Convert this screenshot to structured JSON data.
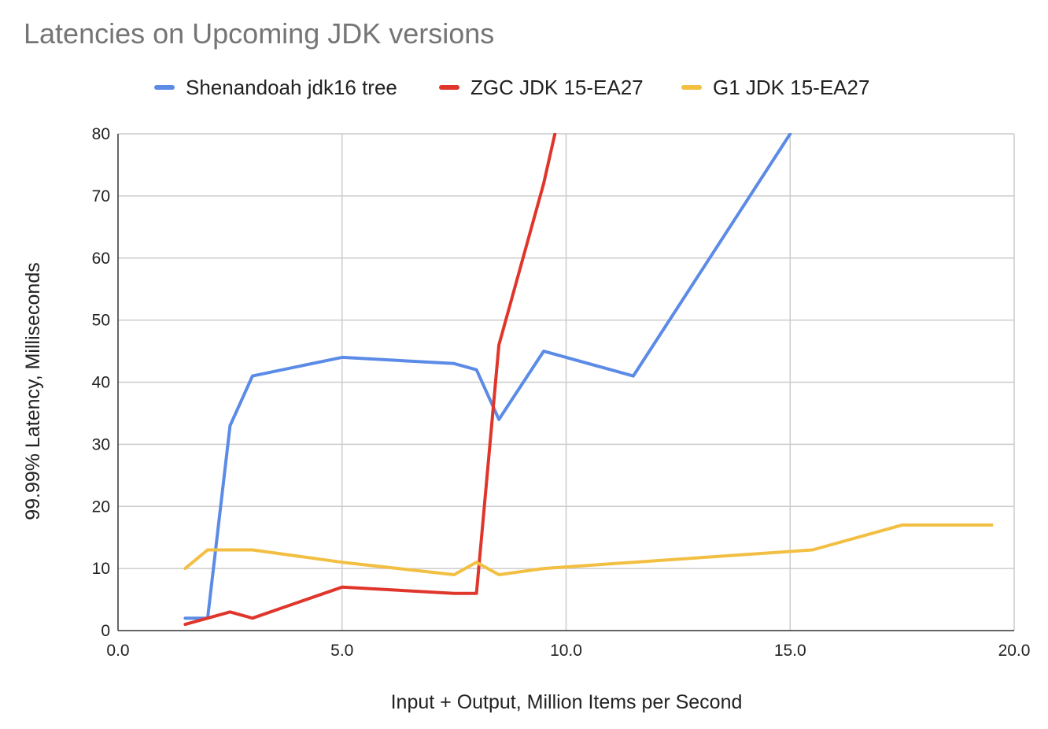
{
  "chart_data": {
    "type": "line",
    "title": "Latencies on Upcoming JDK versions",
    "xlabel": "Input + Output, Million Items per Second",
    "ylabel": "99.99% Latency, Milliseconds",
    "xlim": [
      0,
      20
    ],
    "ylim": [
      0,
      80
    ],
    "x_ticks": [
      0,
      5,
      10,
      15,
      20
    ],
    "x_tick_labels": [
      "0.0",
      "5.0",
      "10.0",
      "15.0",
      "20.0"
    ],
    "y_ticks": [
      0,
      10,
      20,
      30,
      40,
      50,
      60,
      70,
      80
    ],
    "y_tick_labels": [
      "0",
      "10",
      "20",
      "30",
      "40",
      "50",
      "60",
      "70",
      "80"
    ],
    "grid": true,
    "legend_position": "top",
    "series": [
      {
        "name": "Shenandoah jdk16 tree",
        "color": "#5b8be6",
        "x": [
          1.5,
          2.0,
          2.5,
          3.0,
          5.0,
          7.5,
          8.0,
          8.5,
          9.5,
          11.5,
          15.0
        ],
        "y": [
          2,
          2,
          33,
          41,
          44,
          43,
          42,
          34,
          45,
          41,
          80
        ]
      },
      {
        "name": "ZGC JDK 15-EA27",
        "color": "#e0352b",
        "x": [
          1.5,
          2.0,
          2.5,
          3.0,
          5.0,
          7.5,
          8.0,
          8.5,
          9.5,
          9.75
        ],
        "y": [
          1,
          2,
          3,
          2,
          7,
          6,
          6,
          46,
          72,
          80
        ]
      },
      {
        "name": "G1 JDK 15-EA27",
        "color": "#f2bf42",
        "x": [
          1.5,
          2.0,
          2.5,
          3.0,
          5.0,
          7.5,
          8.0,
          8.5,
          9.5,
          11.5,
          15.5,
          17.5,
          19.5
        ],
        "y": [
          10,
          13,
          13,
          13,
          11,
          9,
          11,
          9,
          10,
          11,
          13,
          17,
          17
        ]
      }
    ]
  }
}
